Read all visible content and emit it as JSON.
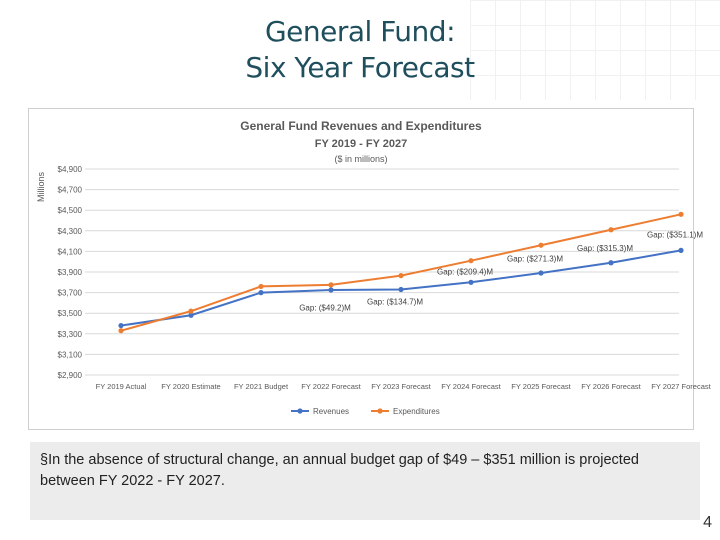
{
  "slide": {
    "title_line1": "General Fund:",
    "title_line2": "Six Year Forecast",
    "bullet_marker": "§",
    "bullet_text": "In the absence of structural change, an annual budget gap of $49 – $351 million is projected between FY 2022 - FY 2027.",
    "page_number": "4"
  },
  "chart_data": {
    "type": "line",
    "title": "General Fund Revenues and Expenditures",
    "subtitle": "FY 2019 - FY 2027",
    "subtitle2": "($ in millions)",
    "ylabel": "Millions",
    "xlabel": "",
    "ylim": [
      2900,
      4900
    ],
    "yticks": [
      2900,
      3100,
      3300,
      3500,
      3700,
      3900,
      4100,
      4300,
      4500,
      4700,
      4900
    ],
    "ytick_labels": [
      "$2,900",
      "$3,100",
      "$3,300",
      "$3,500",
      "$3,700",
      "$3,900",
      "$4,100",
      "$4,300",
      "$4,500",
      "$4,700",
      "$4,900"
    ],
    "categories": [
      "FY 2019 Actual",
      "FY 2020 Estimate",
      "FY 2021 Budget",
      "FY 2022 Forecast",
      "FY 2023 Forecast",
      "FY 2024 Forecast",
      "FY 2025 Forecast",
      "FY 2026 Forecast",
      "FY 2027 Forecast"
    ],
    "series": [
      {
        "name": "Revenues",
        "color": "#4472c4",
        "values": [
          3380,
          3480,
          3700,
          3725,
          3730,
          3800,
          3890,
          3990,
          4110
        ]
      },
      {
        "name": "Expenditures",
        "color": "#ed7d31",
        "values": [
          3330,
          3520,
          3760,
          3775,
          3865,
          4010,
          4160,
          4310,
          4460
        ]
      }
    ],
    "annotations": [
      {
        "text": "Gap: ($49.2)M",
        "category_index": 3,
        "value": 3525
      },
      {
        "text": "Gap: ($134.7)M",
        "category_index": 4,
        "value": 3585
      },
      {
        "text": "Gap: ($209.4)M",
        "category_index": 5,
        "value": 3875
      },
      {
        "text": "Gap: ($271.3)M",
        "category_index": 6,
        "value": 4000
      },
      {
        "text": "Gap: ($315.3)M",
        "category_index": 7,
        "value": 4105
      },
      {
        "text": "Gap: ($351.1)M",
        "category_index": 8,
        "value": 4235
      }
    ],
    "legend": "bottom-center",
    "grid": true
  }
}
